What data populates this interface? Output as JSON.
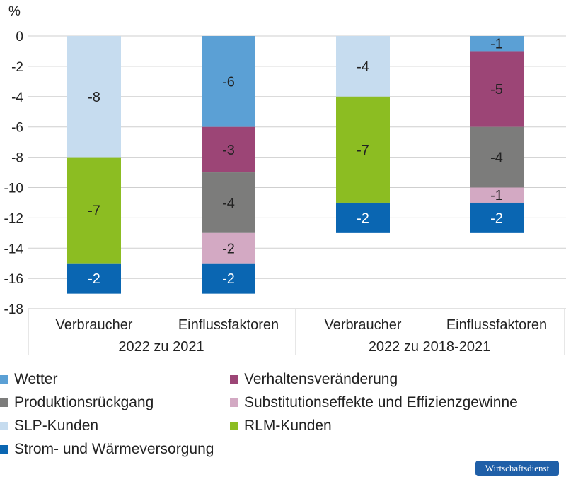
{
  "chart_data": {
    "type": "bar",
    "stacked": true,
    "ylabel": "%",
    "ylim": [
      -18,
      0
    ],
    "yticks": [
      0,
      -2,
      -4,
      -6,
      -8,
      -10,
      -12,
      -14,
      -16,
      -18
    ],
    "grid": true,
    "groups": [
      {
        "label": "2022 zu 2021",
        "categories": [
          "Verbraucher",
          "Einflussfaktoren"
        ]
      },
      {
        "label": "2022 zu 2018-2021",
        "categories": [
          "Verbraucher",
          "Einflussfaktoren"
        ]
      }
    ],
    "categories": [
      "Verbraucher",
      "Einflussfaktoren",
      "Verbraucher",
      "Einflussfaktoren"
    ],
    "series": [
      {
        "name": "Wetter",
        "color": "#5ba0d5",
        "values": [
          null,
          -6,
          null,
          -1
        ]
      },
      {
        "name": "Verhaltensveränderung",
        "color": "#9c4576",
        "values": [
          null,
          -3,
          null,
          -5
        ]
      },
      {
        "name": "Produktionsrückgang",
        "color": "#7c7c7b",
        "values": [
          null,
          -4,
          null,
          -4
        ]
      },
      {
        "name": "Substitutionseffekte und Effizienzgewinne",
        "color": "#d3a9c3",
        "values": [
          null,
          -2,
          null,
          -1
        ]
      },
      {
        "name": "SLP-Kunden",
        "color": "#c6dcef",
        "values": [
          -8,
          null,
          -4,
          null
        ]
      },
      {
        "name": "RLM-Kunden",
        "color": "#8cbd22",
        "values": [
          -7,
          null,
          -7,
          null
        ]
      },
      {
        "name": "Strom- und Wärmeversorgung",
        "color": "#0a66b2",
        "values": [
          -2,
          -2,
          -2,
          -2
        ]
      }
    ],
    "stack_order": [
      [
        "SLP-Kunden",
        "RLM-Kunden",
        "Strom- und Wärmeversorgung"
      ],
      [
        "Wetter",
        "Verhaltensveränderung",
        "Produktionsrückgang",
        "Substitutionseffekte und Effizienzgewinne",
        "Strom- und Wärmeversorgung"
      ],
      [
        "SLP-Kunden",
        "RLM-Kunden",
        "Strom- und Wärmeversorgung"
      ],
      [
        "Wetter",
        "Verhaltensveränderung",
        "Produktionsrückgang",
        "Substitutionseffekte und Effizienzgewinne",
        "Strom- und Wärmeversorgung"
      ]
    ],
    "legend_position": "bottom"
  },
  "legend": [
    {
      "name": "Wetter",
      "color": "#5ba0d5"
    },
    {
      "name": "Verhaltensveränderung",
      "color": "#9c4576"
    },
    {
      "name": "Produktionsrückgang",
      "color": "#7c7c7b"
    },
    {
      "name": "Substitutionseffekte und Effizienzgewinne",
      "color": "#d3a9c3"
    },
    {
      "name": "SLP-Kunden",
      "color": "#c6dcef"
    },
    {
      "name": "RLM-Kunden",
      "color": "#8cbd22"
    },
    {
      "name": "Strom- und Wärmeversorgung",
      "color": "#0a66b2"
    }
  ],
  "brand": "Wirtschaftsdienst"
}
